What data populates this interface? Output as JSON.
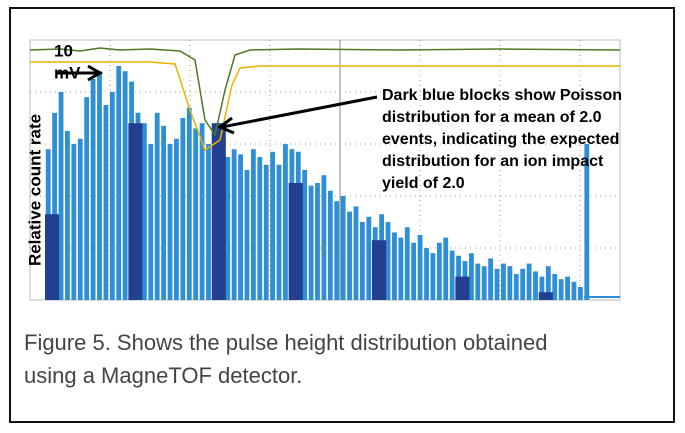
{
  "chart_data": {
    "type": "bar",
    "ylabel": "Relative count rate",
    "scale_label": [
      "10",
      "mV"
    ],
    "annotation": [
      "Dark blue blocks show Poisson",
      "distribution for a mean of 2.0",
      "events, indicating the expected",
      "distribution for an ion impact",
      "yield of 2.0"
    ],
    "caption": [
      "Figure 5. Shows the pulse height distribution obtained",
      "using a MagneTOF detector."
    ],
    "ylim": [
      0,
      100
    ],
    "series": [
      {
        "color": "#2e8fd4",
        "values": [
          58,
          72,
          80,
          65,
          60,
          62,
          78,
          85,
          88,
          75,
          80,
          90,
          88,
          84,
          72,
          68,
          60,
          72,
          67,
          60,
          62,
          70,
          74,
          66,
          68,
          60,
          64,
          62,
          55,
          58,
          56,
          50,
          58,
          55,
          52,
          57,
          52,
          60,
          58,
          57,
          50,
          44,
          45,
          48,
          42,
          38,
          40,
          34,
          36,
          30,
          32,
          28,
          33,
          30,
          26,
          24,
          28,
          22,
          25,
          20,
          18,
          22,
          24,
          19,
          17,
          15,
          18,
          14,
          13,
          16,
          12,
          14,
          13,
          10,
          12,
          14,
          11,
          9,
          13,
          10,
          8,
          9,
          7,
          5,
          60
        ]
      },
      {
        "color": "#233f92",
        "values": [
          33,
          null,
          null,
          null,
          null,
          null,
          null,
          null,
          null,
          null,
          null,
          null,
          null,
          68,
          null,
          null,
          null,
          null,
          null,
          null,
          null,
          null,
          null,
          null,
          null,
          null,
          68,
          null,
          null,
          null,
          null,
          null,
          null,
          null,
          null,
          null,
          null,
          null,
          45,
          null,
          null,
          null,
          null,
          null,
          null,
          null,
          null,
          null,
          null,
          null,
          null,
          23,
          null,
          null,
          null,
          null,
          null,
          null,
          null,
          null,
          null,
          null,
          null,
          null,
          9,
          null,
          null,
          null,
          null,
          null,
          null,
          null,
          null,
          null,
          null,
          null,
          null,
          3,
          null,
          null,
          null,
          null,
          null,
          null,
          null
        ]
      }
    ]
  }
}
